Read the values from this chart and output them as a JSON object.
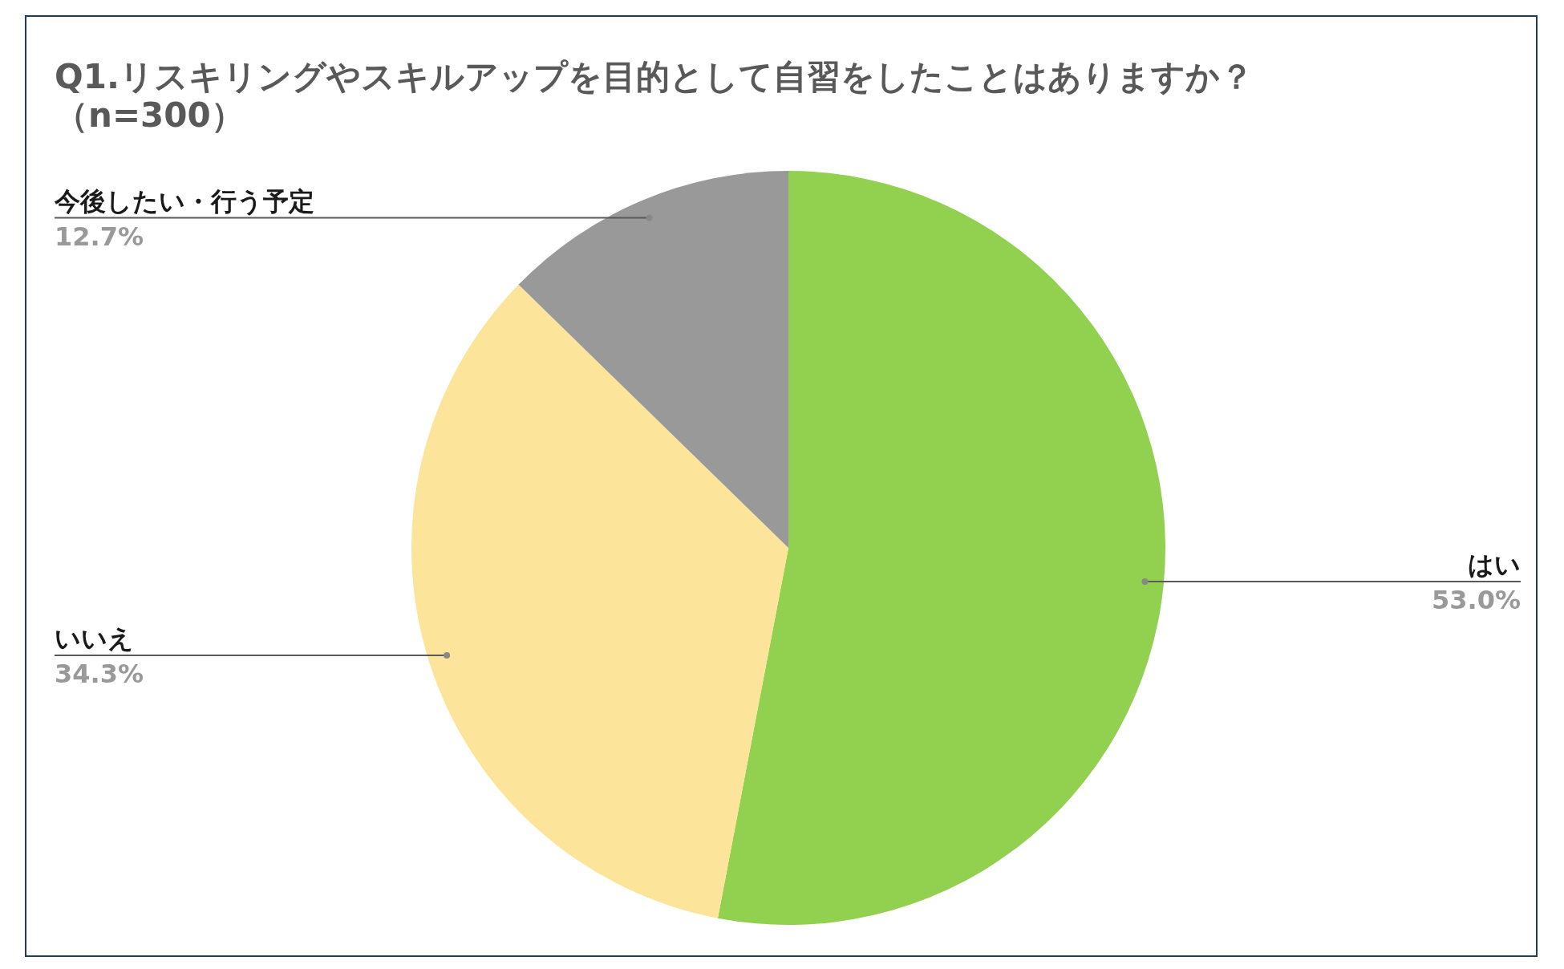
{
  "chart_data": {
    "type": "pie",
    "title": "Q1.リスキリングやスキルアップを目的として自習をしたことはありますか？",
    "subtitle": "（n=300）",
    "categories": [
      "はい",
      "いいえ",
      "今後したい・行う予定"
    ],
    "values": [
      53.0,
      34.3,
      12.7
    ],
    "value_labels": [
      "53.0%",
      "34.3%",
      "12.7%"
    ],
    "colors": [
      "#92d050",
      "#fde49b",
      "#999999"
    ]
  }
}
